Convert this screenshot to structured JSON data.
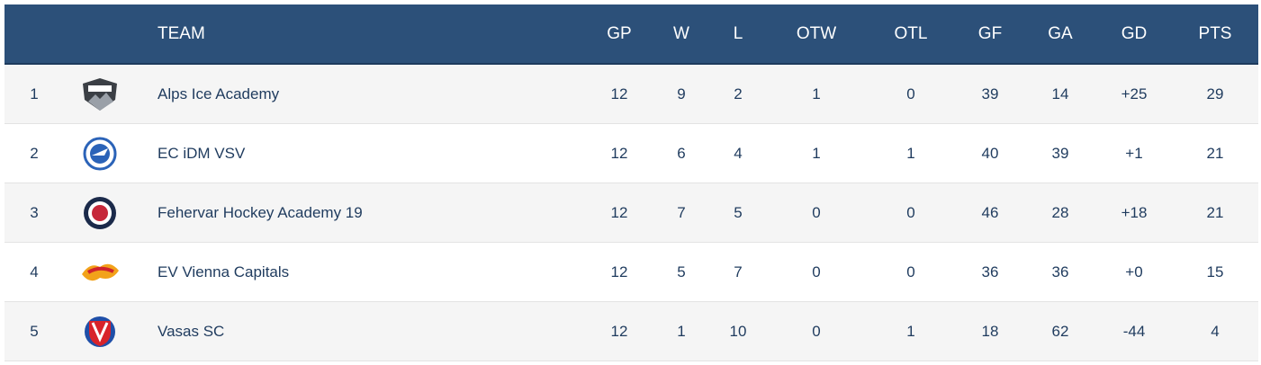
{
  "table": {
    "header": [
      "TEAM",
      "GP",
      "W",
      "L",
      "OTW",
      "OTL",
      "GF",
      "GA",
      "GD",
      "PTS"
    ],
    "rows": [
      [
        1,
        "Alps Ice Academy",
        12,
        9,
        2,
        1,
        0,
        39,
        14,
        "+25",
        29
      ],
      [
        2,
        "EC iDM VSV",
        12,
        6,
        4,
        1,
        1,
        40,
        39,
        "+1",
        21
      ],
      [
        3,
        "Fehervar Hockey Academy 19",
        12,
        7,
        5,
        0,
        0,
        46,
        28,
        "+18",
        21
      ],
      [
        4,
        "EV Vienna Capitals",
        12,
        5,
        7,
        0,
        0,
        36,
        36,
        "+0",
        15
      ],
      [
        5,
        "Vasas SC",
        12,
        1,
        10,
        0,
        1,
        18,
        62,
        "-44",
        4
      ]
    ]
  }
}
